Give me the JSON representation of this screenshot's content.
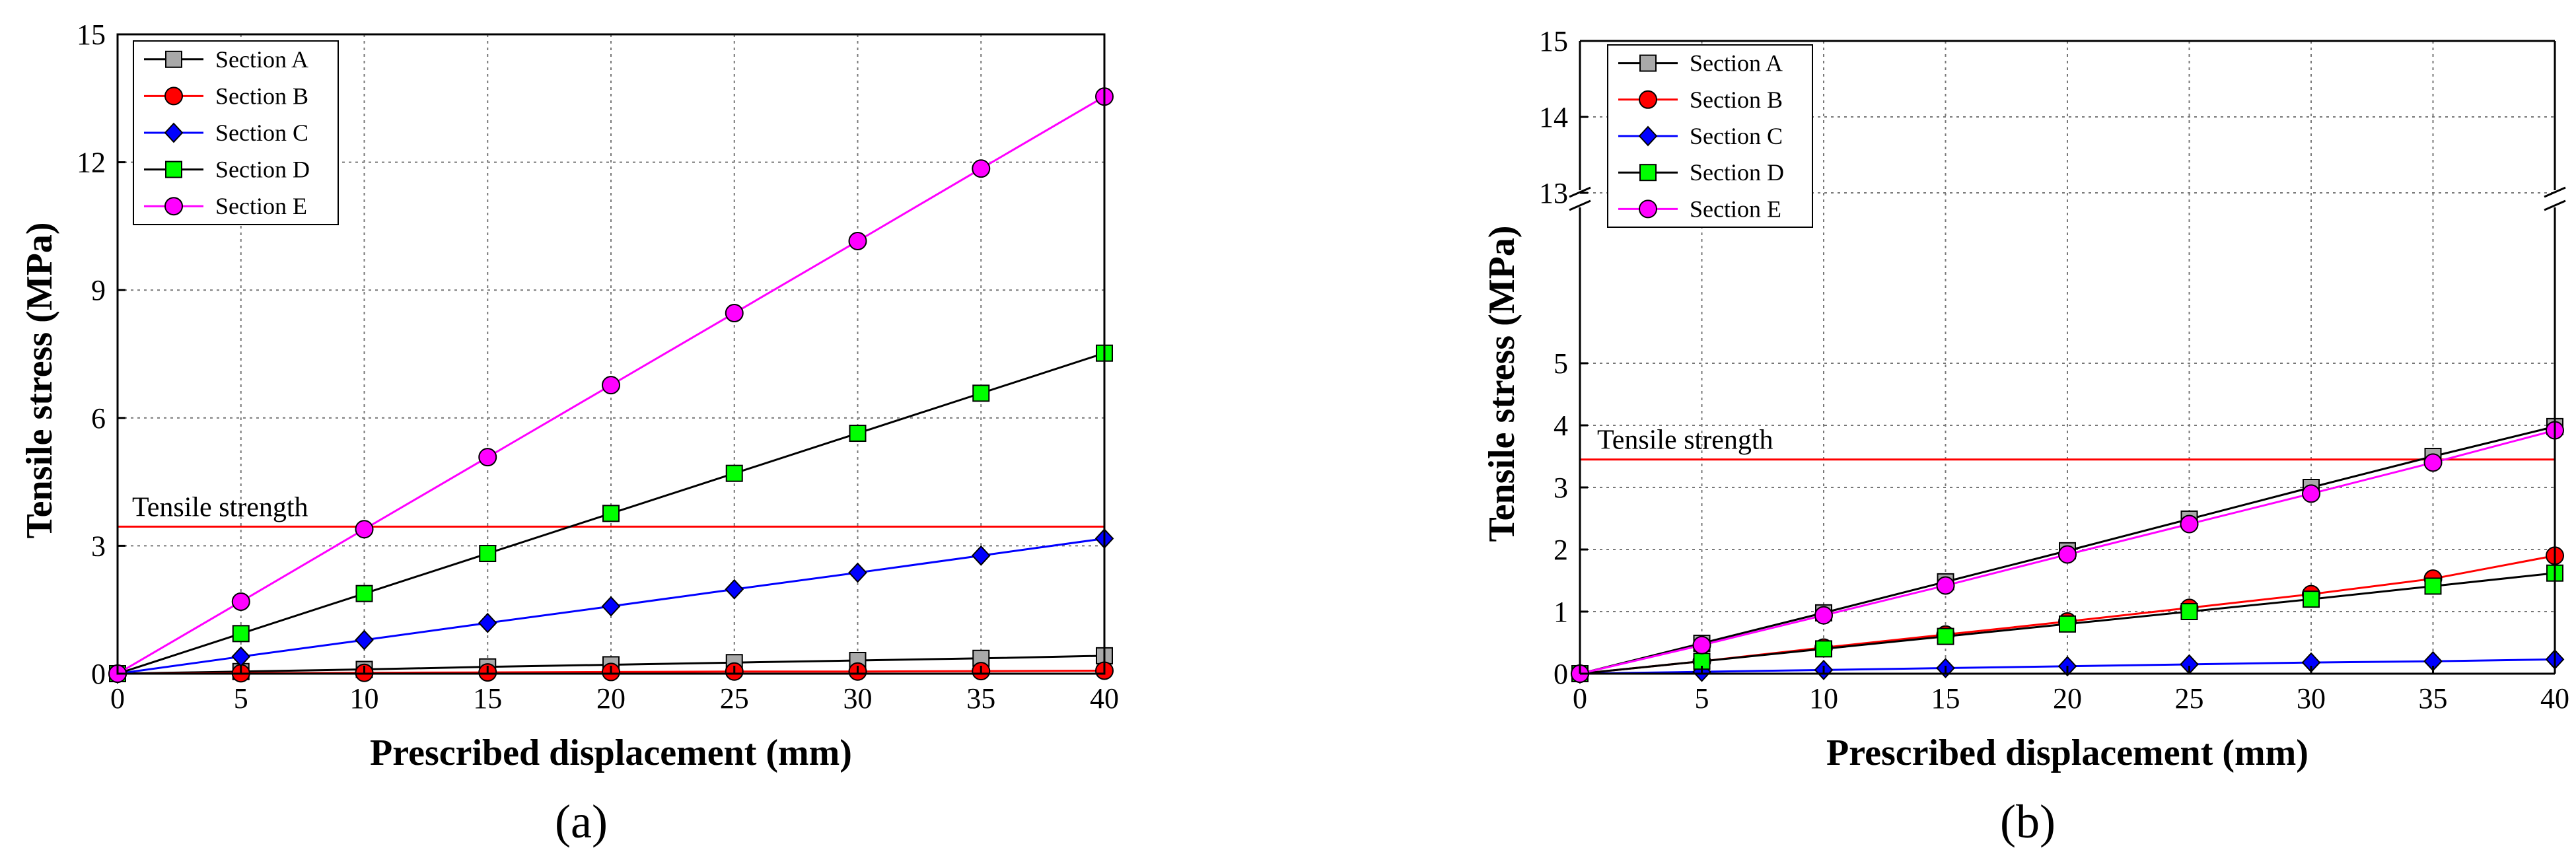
{
  "chart_data": [
    {
      "type": "line",
      "panel_label": "(a)",
      "xlabel": "Prescribed displacement (mm)",
      "ylabel": "Tensile stress (MPa)",
      "xlim": [
        0,
        40
      ],
      "ylim": [
        0,
        15
      ],
      "xticks": [
        0,
        5,
        10,
        15,
        20,
        25,
        30,
        35,
        40
      ],
      "yticks": [
        0,
        3,
        6,
        9,
        12,
        15
      ],
      "grid": true,
      "legend_position": "top-left",
      "x": [
        0,
        5,
        10,
        15,
        20,
        25,
        30,
        35,
        40
      ],
      "series": [
        {
          "name": "Section A",
          "color": "#a9a9a9",
          "marker": "square",
          "line_color": "#000000",
          "values": [
            0,
            0.05,
            0.1,
            0.16,
            0.21,
            0.26,
            0.31,
            0.36,
            0.42
          ]
        },
        {
          "name": "Section B",
          "color": "#ff0000",
          "marker": "circle",
          "line_color": "#ff0000",
          "values": [
            0,
            0.01,
            0.02,
            0.03,
            0.04,
            0.05,
            0.05,
            0.06,
            0.07
          ]
        },
        {
          "name": "Section C",
          "color": "#0000ff",
          "marker": "diamond",
          "line_color": "#0000ff",
          "values": [
            0,
            0.4,
            0.79,
            1.19,
            1.58,
            1.98,
            2.37,
            2.77,
            3.17
          ]
        },
        {
          "name": "Section D",
          "color": "#00ff00",
          "marker": "square",
          "line_color": "#000000",
          "values": [
            0,
            0.94,
            1.88,
            2.82,
            3.76,
            4.7,
            5.64,
            6.58,
            7.52
          ]
        },
        {
          "name": "Section E",
          "color": "#ff00ff",
          "marker": "circle",
          "line_color": "#ff00ff",
          "values": [
            0,
            1.69,
            3.39,
            5.08,
            6.77,
            8.46,
            10.15,
            11.85,
            13.54
          ]
        }
      ],
      "reference_line": {
        "label": "Tensile strength",
        "value": 3.45,
        "color": "#ff0000"
      }
    },
    {
      "type": "line",
      "panel_label": "(b)",
      "xlabel": "Prescribed displacement (mm)",
      "ylabel": "Tensile stress (MPa)",
      "xlim": [
        0,
        40
      ],
      "ylim": [
        0,
        15
      ],
      "axis_break": [
        5.8,
        13
      ],
      "xticks": [
        0,
        5,
        10,
        15,
        20,
        25,
        30,
        35,
        40
      ],
      "yticks": [
        0,
        1,
        2,
        3,
        4,
        5,
        13,
        14,
        15
      ],
      "grid": true,
      "legend_position": "top-left",
      "x": [
        0,
        5,
        10,
        15,
        20,
        25,
        30,
        35,
        40
      ],
      "series": [
        {
          "name": "Section A",
          "color": "#a9a9a9",
          "marker": "square",
          "line_color": "#000000",
          "values": [
            0,
            0.49,
            0.98,
            1.48,
            1.98,
            2.49,
            3.0,
            3.5,
            3.98
          ]
        },
        {
          "name": "Section B",
          "color": "#ff0000",
          "marker": "circle",
          "line_color": "#ff0000",
          "values": [
            0,
            0.2,
            0.42,
            0.63,
            0.84,
            1.06,
            1.28,
            1.53,
            1.9
          ]
        },
        {
          "name": "Section C",
          "color": "#0000ff",
          "marker": "diamond",
          "line_color": "#0000ff",
          "values": [
            0,
            0.03,
            0.06,
            0.09,
            0.12,
            0.15,
            0.18,
            0.2,
            0.23
          ]
        },
        {
          "name": "Section D",
          "color": "#00ff00",
          "marker": "square",
          "line_color": "#000000",
          "values": [
            0,
            0.2,
            0.4,
            0.6,
            0.8,
            1.0,
            1.2,
            1.41,
            1.62
          ]
        },
        {
          "name": "Section E",
          "color": "#ff00ff",
          "marker": "circle",
          "line_color": "#ff00ff",
          "values": [
            0,
            0.46,
            0.94,
            1.42,
            1.92,
            2.41,
            2.9,
            3.4,
            3.92
          ]
        }
      ],
      "reference_line": {
        "label": "Tensile strength",
        "value": 3.45,
        "color": "#ff0000"
      }
    }
  ]
}
